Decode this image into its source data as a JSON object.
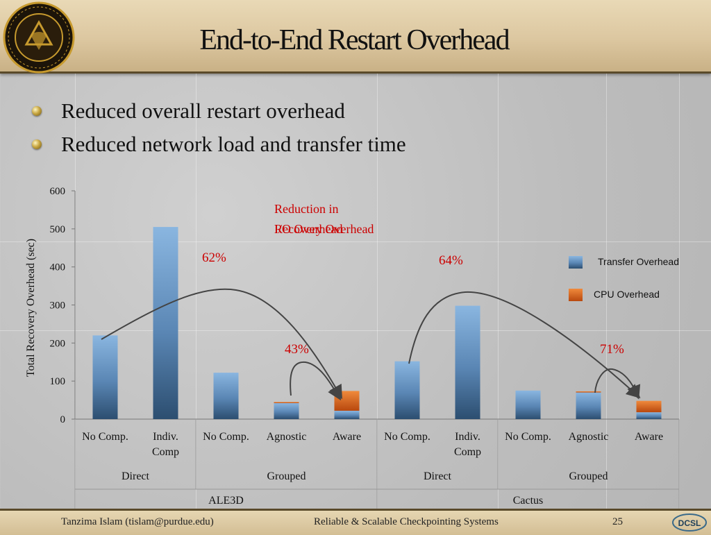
{
  "slide": {
    "title": "End-to-End Restart Overhead",
    "bullets": [
      "Reduced overall restart overhead",
      "Reduced network load and transfer time"
    ],
    "footer": {
      "author": "Tanzima Islam (tislam@purdue.edu)",
      "course": "Reliable & Scalable Checkpointing Systems",
      "page": "25"
    },
    "logo_text": "PURDUE UNIVERSITY",
    "footer_logo_text": "DCSL"
  },
  "colors": {
    "transfer": "#5f8fc0",
    "cpu": "#e0661e",
    "annotation": "#cc0000",
    "arrow": "#444444"
  },
  "chart_data": {
    "type": "bar",
    "stacked": true,
    "ylabel": "Total Recovery Overhead (sec)",
    "ylim": [
      0,
      600
    ],
    "yticks": [
      0,
      100,
      200,
      300,
      400,
      500,
      600
    ],
    "categories": [
      "No Comp.",
      "Indiv. Comp",
      "No Comp.",
      "Agnostic",
      "Aware",
      "No Comp.",
      "Indiv. Comp",
      "No Comp.",
      "Agnostic",
      "Aware"
    ],
    "category_lines": [
      [
        "No Comp."
      ],
      [
        "Indiv.",
        "Comp"
      ],
      [
        "No Comp."
      ],
      [
        "Agnostic"
      ],
      [
        "Aware"
      ],
      [
        "No Comp."
      ],
      [
        "Indiv.",
        "Comp"
      ],
      [
        "No Comp."
      ],
      [
        "Agnostic"
      ],
      [
        "Aware"
      ]
    ],
    "groups_level2": [
      "Direct",
      "Grouped",
      "Direct",
      "Grouped"
    ],
    "groups_level1": [
      "ALE3D",
      "Cactus"
    ],
    "series": [
      {
        "name": "Transfer Overhead",
        "values": [
          220,
          505,
          122,
          42,
          22,
          152,
          298,
          75,
          70,
          18
        ]
      },
      {
        "name": "CPU Overhead",
        "values": [
          0,
          0,
          0,
          3,
          52,
          0,
          0,
          0,
          3,
          30
        ]
      }
    ],
    "legend": [
      "Transfer Overhead",
      "CPU Overhead"
    ],
    "legend_position": "right",
    "annotations": {
      "header_line1": "Reduction in",
      "header_line2a": "I/O Overhead",
      "header_line2b": "Recovery Overhead",
      "pct_62": "62%",
      "pct_43": "43%",
      "pct_64": "64%",
      "pct_71": "71%"
    }
  }
}
